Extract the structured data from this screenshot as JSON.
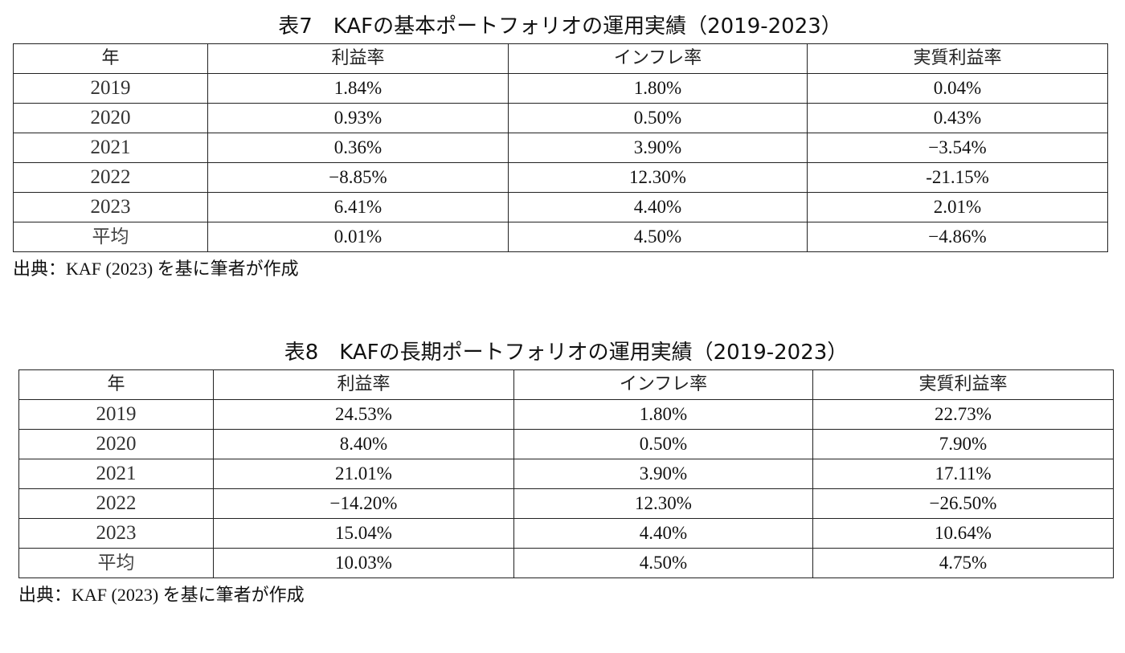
{
  "table7": {
    "caption": "表7　KAFの基本ポートフォリオの運用実績（2019-2023）",
    "headers": [
      "年",
      "利益率",
      "インフレ率",
      "実質利益率"
    ],
    "rows": [
      [
        "2019",
        "1.84%",
        "1.80%",
        "0.04%"
      ],
      [
        "2020",
        "0.93%",
        "0.50%",
        "0.43%"
      ],
      [
        "2021",
        "0.36%",
        "3.90%",
        "−3.54%"
      ],
      [
        "2022",
        "−8.85%",
        "12.30%",
        "-21.15%"
      ],
      [
        "2023",
        "6.41%",
        "4.40%",
        "2.01%"
      ],
      [
        "平均",
        "0.01%",
        "4.50%",
        "−4.86%"
      ]
    ],
    "source": "出典：KAF (2023) を基に筆者が作成"
  },
  "table8": {
    "caption": "表8　KAFの長期ポートフォリオの運用実績（2019-2023）",
    "headers": [
      "年",
      "利益率",
      "インフレ率",
      "実質利益率"
    ],
    "rows": [
      [
        "2019",
        "24.53%",
        "1.80%",
        "22.73%"
      ],
      [
        "2020",
        "8.40%",
        "0.50%",
        "7.90%"
      ],
      [
        "2021",
        "21.01%",
        "3.90%",
        "17.11%"
      ],
      [
        "2022",
        "−14.20%",
        "12.30%",
        "−26.50%"
      ],
      [
        "2023",
        "15.04%",
        "4.40%",
        "10.64%"
      ],
      [
        "平均",
        "10.03%",
        "4.50%",
        "4.75%"
      ]
    ],
    "source": "出典：KAF (2023) を基に筆者が作成"
  }
}
